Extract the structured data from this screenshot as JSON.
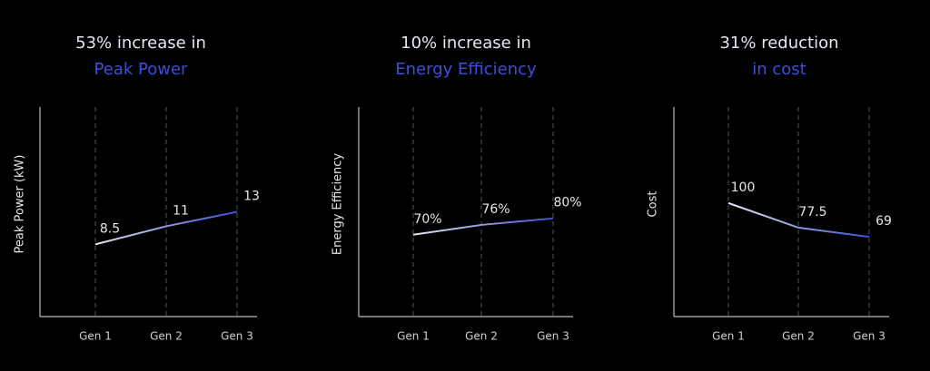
{
  "chart_data": [
    {
      "type": "line",
      "title": [
        "53% increase in",
        "Peak Power"
      ],
      "y_label": "Peak Power (kW)",
      "categories": [
        "Gen 1",
        "Gen 2",
        "Gen 3"
      ],
      "values": [
        8.5,
        11,
        13
      ],
      "ylim": [
        -1.5,
        27.5
      ],
      "colors": [
        "#e4e6f2",
        "#3b50d6"
      ]
    },
    {
      "type": "line",
      "title": [
        "10% increase in",
        "Energy Efficiency"
      ],
      "y_label": "Energy Efficiency",
      "categories": [
        "Gen 1",
        "Gen 2",
        "Gen 3"
      ],
      "values": [
        70,
        76,
        80
      ],
      "value_labels": [
        "70%",
        "76%",
        "80%"
      ],
      "ylim": [
        20,
        148
      ],
      "colors": [
        "#e4e6f2",
        "#3b50d6"
      ]
    },
    {
      "type": "line",
      "title": [
        "31% reduction",
        "in cost"
      ],
      "y_label": "Cost",
      "categories": [
        "Gen 1",
        "Gen 2",
        "Gen 3"
      ],
      "values": [
        100,
        77.5,
        69
      ],
      "ylim": [
        -4,
        188
      ],
      "colors": [
        "#e4e6f2",
        "#3b50d6"
      ]
    }
  ]
}
